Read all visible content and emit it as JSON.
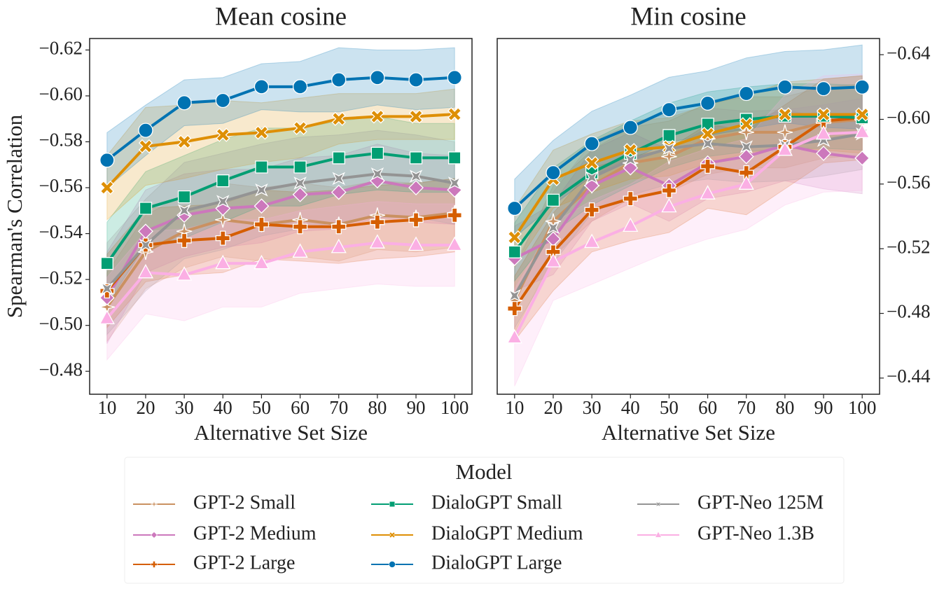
{
  "chart_data": [
    {
      "type": "line",
      "title": "Mean cosine",
      "x_label": "Alternative Set Size",
      "y_label": "Spearman's Correlation",
      "y_side": "left",
      "x": [
        10,
        20,
        30,
        40,
        50,
        60,
        70,
        80,
        90,
        100
      ],
      "xlim": [
        5.5,
        104.5
      ],
      "xticks": [
        10,
        20,
        30,
        40,
        50,
        60,
        70,
        80,
        90,
        100
      ],
      "ylim": [
        -0.47,
        -0.625
      ],
      "yticks": [
        {
          "value": -0.62,
          "label": "−0.62"
        },
        {
          "value": -0.6,
          "label": "−0.60"
        },
        {
          "value": -0.58,
          "label": "−0.58"
        },
        {
          "value": -0.56,
          "label": "−0.56"
        },
        {
          "value": -0.54,
          "label": "−0.54"
        },
        {
          "value": -0.52,
          "label": "−0.52"
        },
        {
          "value": -0.5,
          "label": "−0.50"
        },
        {
          "value": -0.48,
          "label": "−0.48"
        }
      ],
      "legend_title": "Model",
      "series": [
        {
          "name": "GPT-2 Small",
          "color": "#ca9161",
          "marker": "star",
          "values": [
            -0.508,
            -0.532,
            -0.541,
            -0.546,
            -0.544,
            -0.546,
            -0.544,
            -0.548,
            -0.547,
            -0.549
          ],
          "ci": [
            0.015,
            0.016,
            0.016,
            0.016,
            0.016,
            0.016,
            0.016,
            0.015,
            0.015,
            0.015
          ]
        },
        {
          "name": "GPT-2 Medium",
          "color": "#cc78bc",
          "marker": "diamond",
          "values": [
            -0.512,
            -0.541,
            -0.548,
            -0.551,
            -0.552,
            -0.557,
            -0.558,
            -0.563,
            -0.56,
            -0.559
          ],
          "ci": [
            0.02,
            0.018,
            0.018,
            0.017,
            0.016,
            0.016,
            0.016,
            0.016,
            0.015,
            0.015
          ]
        },
        {
          "name": "GPT-2 Large",
          "color": "#d55e00",
          "marker": "plus",
          "values": [
            -0.515,
            -0.535,
            -0.537,
            -0.538,
            -0.544,
            -0.543,
            -0.543,
            -0.545,
            -0.546,
            -0.548
          ],
          "ci": [
            0.016,
            0.016,
            0.015,
            0.015,
            0.015,
            0.015,
            0.016,
            0.016,
            0.016,
            0.016
          ]
        },
        {
          "name": "DialoGPT Small",
          "color": "#029e73",
          "marker": "square",
          "values": [
            -0.527,
            -0.551,
            -0.556,
            -0.563,
            -0.569,
            -0.569,
            -0.573,
            -0.575,
            -0.573,
            -0.573
          ],
          "ci": [
            0.018,
            0.016,
            0.018,
            0.018,
            0.017,
            0.017,
            0.016,
            0.016,
            0.015,
            0.015
          ]
        },
        {
          "name": "DialoGPT Medium",
          "color": "#de8f05",
          "marker": "x",
          "values": [
            -0.56,
            -0.578,
            -0.58,
            -0.583,
            -0.584,
            -0.586,
            -0.59,
            -0.591,
            -0.591,
            -0.592
          ],
          "ci": [
            0.014,
            0.017,
            0.016,
            0.015,
            0.013,
            0.013,
            0.011,
            0.01,
            0.01,
            0.011
          ]
        },
        {
          "name": "DialoGPT Large",
          "color": "#0173b2",
          "marker": "circle",
          "values": [
            -0.572,
            -0.585,
            -0.597,
            -0.598,
            -0.604,
            -0.604,
            -0.607,
            -0.608,
            -0.607,
            -0.608
          ],
          "ci": [
            0.012,
            0.011,
            0.01,
            0.01,
            0.01,
            0.011,
            0.014,
            0.012,
            0.013,
            0.013
          ]
        },
        {
          "name": "GPT-Neo 125M",
          "color": "#949494",
          "marker": "star4",
          "values": [
            -0.516,
            -0.535,
            -0.55,
            -0.554,
            -0.559,
            -0.562,
            -0.564,
            -0.566,
            -0.565,
            -0.562
          ],
          "ci": [
            0.02,
            0.02,
            0.021,
            0.021,
            0.02,
            0.02,
            0.019,
            0.019,
            0.018,
            0.018
          ]
        },
        {
          "name": "GPT-Neo 1.3B",
          "color": "#fbafe4",
          "marker": "triangle",
          "values": [
            -0.503,
            -0.523,
            -0.522,
            -0.527,
            -0.527,
            -0.532,
            -0.534,
            -0.536,
            -0.535,
            -0.535
          ],
          "ci": [
            0.018,
            0.018,
            0.02,
            0.019,
            0.019,
            0.018,
            0.018,
            0.018,
            0.018,
            0.018
          ]
        }
      ]
    },
    {
      "type": "line",
      "title": "Min cosine",
      "x_label": "Alternative Set Size",
      "y_side": "right",
      "x": [
        10,
        20,
        30,
        40,
        50,
        60,
        70,
        80,
        90,
        100
      ],
      "xlim": [
        5.5,
        104.5
      ],
      "xticks": [
        10,
        20,
        30,
        40,
        50,
        60,
        70,
        80,
        90,
        100
      ],
      "ylim": [
        -0.43,
        -0.65
      ],
      "yticks": [
        {
          "value": -0.64,
          "label": "−0.64"
        },
        {
          "value": -0.6,
          "label": "−0.60"
        },
        {
          "value": -0.56,
          "label": "−0.56"
        },
        {
          "value": -0.52,
          "label": "−0.52"
        },
        {
          "value": -0.48,
          "label": "−0.48"
        },
        {
          "value": -0.44,
          "label": "−0.44"
        }
      ],
      "series": [
        {
          "name": "GPT-2 Small",
          "color": "#ca9161",
          "marker": "star",
          "values": [
            -0.488,
            -0.537,
            -0.559,
            -0.573,
            -0.577,
            -0.588,
            -0.592,
            -0.592,
            -0.598,
            -0.6
          ],
          "ci": [
            0.02,
            0.022,
            0.022,
            0.022,
            0.022,
            0.022,
            0.022,
            0.022,
            0.022,
            0.022
          ]
        },
        {
          "name": "GPT-2 Medium",
          "color": "#cc78bc",
          "marker": "diamond",
          "values": [
            -0.514,
            -0.526,
            -0.559,
            -0.57,
            -0.559,
            -0.573,
            -0.577,
            -0.584,
            -0.579,
            -0.576
          ],
          "ci": [
            0.02,
            0.022,
            0.022,
            0.022,
            0.022,
            0.022,
            0.022,
            0.022,
            0.022,
            0.022
          ]
        },
        {
          "name": "GPT-2 Large",
          "color": "#d55e00",
          "marker": "plus",
          "values": [
            -0.483,
            -0.518,
            -0.544,
            -0.551,
            -0.556,
            -0.571,
            -0.567,
            -0.583,
            -0.599,
            -0.601
          ],
          "ci": [
            0.02,
            0.024,
            0.026,
            0.026,
            0.026,
            0.026,
            0.026,
            0.026,
            0.026,
            0.026
          ]
        },
        {
          "name": "DialoGPT Small",
          "color": "#029e73",
          "marker": "square",
          "values": [
            -0.518,
            -0.55,
            -0.567,
            -0.579,
            -0.59,
            -0.597,
            -0.6,
            -0.602,
            -0.602,
            -0.601
          ],
          "ci": [
            0.018,
            0.02,
            0.02,
            0.02,
            0.02,
            0.02,
            0.02,
            0.02,
            0.02,
            0.02
          ]
        },
        {
          "name": "DialoGPT Medium",
          "color": "#de8f05",
          "marker": "x",
          "values": [
            -0.527,
            -0.563,
            -0.573,
            -0.581,
            -0.583,
            -0.591,
            -0.597,
            -0.603,
            -0.603,
            -0.603
          ],
          "ci": [
            0.018,
            0.018,
            0.018,
            0.018,
            0.018,
            0.018,
            0.018,
            0.02,
            0.022,
            0.024
          ]
        },
        {
          "name": "DialoGPT Large",
          "color": "#0173b2",
          "marker": "circle",
          "values": [
            -0.545,
            -0.567,
            -0.585,
            -0.595,
            -0.606,
            -0.61,
            -0.616,
            -0.62,
            -0.619,
            -0.62
          ],
          "ci": [
            0.018,
            0.02,
            0.02,
            0.02,
            0.02,
            0.02,
            0.022,
            0.022,
            0.024,
            0.026
          ]
        },
        {
          "name": "GPT-Neo 125M",
          "color": "#949494",
          "marker": "star4",
          "values": [
            -0.491,
            -0.533,
            -0.564,
            -0.575,
            -0.582,
            -0.585,
            -0.583,
            -0.584,
            -0.587,
            -0.591
          ],
          "ci": [
            0.02,
            0.022,
            0.022,
            0.022,
            0.022,
            0.022,
            0.022,
            0.022,
            0.022,
            0.022
          ]
        },
        {
          "name": "GPT-Neo 1.3B",
          "color": "#fbafe4",
          "marker": "triangle",
          "values": [
            -0.465,
            -0.512,
            -0.524,
            -0.534,
            -0.546,
            -0.554,
            -0.56,
            -0.581,
            -0.591,
            -0.592
          ],
          "ci": [
            0.03,
            0.024,
            0.026,
            0.026,
            0.028,
            0.028,
            0.028,
            0.034,
            0.036,
            0.036
          ]
        }
      ]
    }
  ]
}
